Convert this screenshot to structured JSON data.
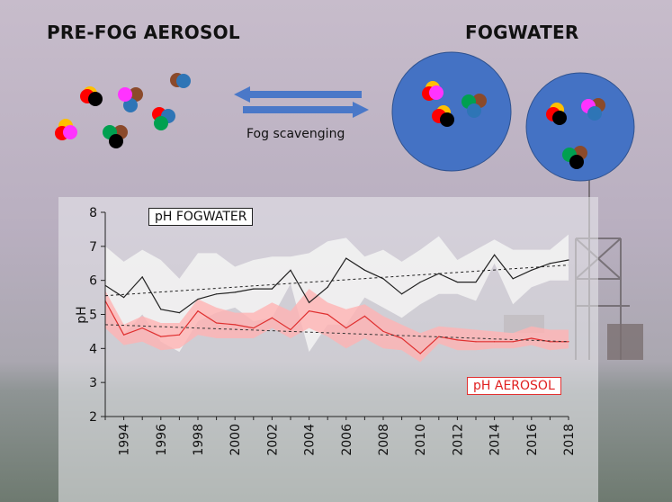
{
  "title_aerosol": "PRE-FOG AEROSOL",
  "title_fogwater": "FOGWATER",
  "scavenging_label": "Fog scavenging",
  "colors": {
    "fog_circle": "#4472c4",
    "arrow": "#4a78c8",
    "fog_line": "#222222",
    "fog_band": "#f2f2f2",
    "aerosol_line": "#e03030",
    "aerosol_band": "#ffb3b3"
  },
  "chart_data": {
    "type": "line",
    "ylabel": "pH",
    "xlabel": "",
    "ylim": [
      2,
      8
    ],
    "xlim": [
      1993,
      2018
    ],
    "yticks": [
      "2",
      "3",
      "4",
      "5",
      "6",
      "7",
      "8"
    ],
    "xticks": [
      "1994",
      "1996",
      "1998",
      "2000",
      "2002",
      "2004",
      "2006",
      "2008",
      "2010",
      "2012",
      "2014",
      "2016",
      "2018"
    ],
    "series": [
      {
        "name": "pH FOGWATER",
        "x": [
          1993,
          1994,
          1995,
          1996,
          1997,
          1998,
          1999,
          2000,
          2001,
          2002,
          2003,
          2004,
          2005,
          2006,
          2007,
          2008,
          2009,
          2010,
          2011,
          2012,
          2013,
          2014,
          2015,
          2016,
          2017,
          2018
        ],
        "median": [
          5.85,
          5.5,
          6.1,
          5.15,
          5.05,
          5.45,
          5.6,
          5.65,
          5.75,
          5.75,
          6.3,
          5.35,
          5.8,
          6.65,
          6.3,
          6.05,
          5.6,
          5.95,
          6.2,
          5.95,
          5.95,
          6.75,
          6.05,
          6.3,
          6.5,
          6.6
        ],
        "band_upper": [
          7.0,
          6.55,
          6.9,
          6.6,
          6.05,
          6.8,
          6.8,
          6.4,
          6.6,
          6.7,
          6.7,
          6.8,
          7.15,
          7.25,
          6.7,
          6.9,
          6.55,
          6.9,
          7.3,
          6.6,
          6.9,
          7.2,
          6.9,
          6.9,
          6.9,
          7.35
        ],
        "band_lower": [
          5.3,
          4.4,
          5.0,
          4.2,
          3.9,
          4.8,
          5.05,
          5.2,
          4.8,
          4.9,
          5.9,
          3.9,
          4.7,
          4.7,
          5.5,
          5.2,
          4.9,
          5.3,
          5.6,
          5.6,
          5.4,
          6.5,
          5.3,
          5.8,
          6.0,
          6.0
        ],
        "trend": [
          5.55,
          6.45
        ]
      },
      {
        "name": "pH AEROSOL",
        "x": [
          1993,
          1994,
          1995,
          1996,
          1997,
          1998,
          1999,
          2000,
          2001,
          2002,
          2003,
          2004,
          2005,
          2006,
          2007,
          2008,
          2009,
          2010,
          2011,
          2012,
          2013,
          2014,
          2015,
          2016,
          2017,
          2018
        ],
        "median": [
          5.4,
          4.4,
          4.6,
          4.35,
          4.4,
          5.1,
          4.75,
          4.7,
          4.6,
          4.9,
          4.55,
          5.1,
          5.0,
          4.6,
          4.95,
          4.5,
          4.3,
          3.85,
          4.35,
          4.25,
          4.2,
          4.2,
          4.2,
          4.3,
          4.2,
          4.2
        ],
        "band_upper": [
          5.7,
          4.7,
          4.95,
          4.75,
          4.75,
          5.45,
          5.2,
          5.05,
          5.05,
          5.35,
          5.1,
          5.75,
          5.35,
          5.15,
          5.3,
          4.95,
          4.7,
          4.45,
          4.65,
          4.6,
          4.55,
          4.5,
          4.45,
          4.65,
          4.55,
          4.55
        ],
        "band_lower": [
          4.6,
          4.1,
          4.2,
          3.95,
          4.0,
          4.4,
          4.3,
          4.3,
          4.3,
          4.6,
          4.3,
          4.6,
          4.35,
          4.0,
          4.3,
          4.0,
          3.95,
          3.6,
          4.15,
          3.95,
          3.95,
          4.0,
          4.0,
          4.1,
          3.95,
          4.0
        ],
        "trend": [
          4.7,
          4.2
        ]
      }
    ]
  }
}
